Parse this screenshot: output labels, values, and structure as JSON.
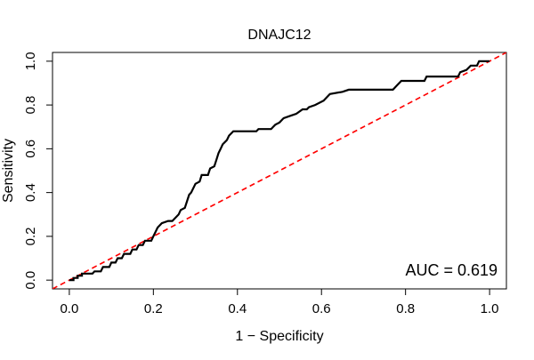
{
  "chart_data": {
    "type": "line",
    "title": "DNAJC12",
    "xlabel": "1 − Specificity",
    "ylabel": "Sensitivity",
    "xlim": [
      -0.04,
      1.04
    ],
    "ylim": [
      -0.04,
      1.04
    ],
    "x_ticks": [
      "0.0",
      "0.2",
      "0.4",
      "0.6",
      "0.8",
      "1.0"
    ],
    "y_ticks": [
      "0.0",
      "0.2",
      "0.4",
      "0.6",
      "0.8",
      "1.0"
    ],
    "grid": false,
    "annotation": "AUC = 0.619",
    "series": [
      {
        "name": "ROC",
        "color": "#000000",
        "style": "solid",
        "points": [
          [
            0.0,
            0.0
          ],
          [
            0.01,
            0.0
          ],
          [
            0.01,
            0.01
          ],
          [
            0.02,
            0.01
          ],
          [
            0.02,
            0.02
          ],
          [
            0.03,
            0.02
          ],
          [
            0.03,
            0.03
          ],
          [
            0.055,
            0.03
          ],
          [
            0.06,
            0.04
          ],
          [
            0.075,
            0.04
          ],
          [
            0.08,
            0.06
          ],
          [
            0.095,
            0.06
          ],
          [
            0.1,
            0.08
          ],
          [
            0.11,
            0.08
          ],
          [
            0.115,
            0.1
          ],
          [
            0.125,
            0.1
          ],
          [
            0.13,
            0.12
          ],
          [
            0.145,
            0.12
          ],
          [
            0.15,
            0.14
          ],
          [
            0.16,
            0.14
          ],
          [
            0.165,
            0.16
          ],
          [
            0.175,
            0.16
          ],
          [
            0.18,
            0.18
          ],
          [
            0.195,
            0.18
          ],
          [
            0.2,
            0.2
          ],
          [
            0.205,
            0.22
          ],
          [
            0.21,
            0.24
          ],
          [
            0.22,
            0.26
          ],
          [
            0.235,
            0.27
          ],
          [
            0.245,
            0.27
          ],
          [
            0.25,
            0.28
          ],
          [
            0.26,
            0.3
          ],
          [
            0.265,
            0.32
          ],
          [
            0.275,
            0.33
          ],
          [
            0.28,
            0.36
          ],
          [
            0.285,
            0.39
          ],
          [
            0.29,
            0.4
          ],
          [
            0.3,
            0.44
          ],
          [
            0.31,
            0.45
          ],
          [
            0.315,
            0.48
          ],
          [
            0.33,
            0.48
          ],
          [
            0.335,
            0.51
          ],
          [
            0.345,
            0.52
          ],
          [
            0.35,
            0.55
          ],
          [
            0.355,
            0.58
          ],
          [
            0.36,
            0.6
          ],
          [
            0.365,
            0.62
          ],
          [
            0.375,
            0.64
          ],
          [
            0.38,
            0.66
          ],
          [
            0.39,
            0.68
          ],
          [
            0.445,
            0.68
          ],
          [
            0.45,
            0.69
          ],
          [
            0.48,
            0.69
          ],
          [
            0.485,
            0.7
          ],
          [
            0.49,
            0.71
          ],
          [
            0.5,
            0.72
          ],
          [
            0.51,
            0.74
          ],
          [
            0.525,
            0.75
          ],
          [
            0.54,
            0.76
          ],
          [
            0.555,
            0.78
          ],
          [
            0.565,
            0.78
          ],
          [
            0.57,
            0.79
          ],
          [
            0.585,
            0.8
          ],
          [
            0.605,
            0.82
          ],
          [
            0.615,
            0.84
          ],
          [
            0.62,
            0.85
          ],
          [
            0.65,
            0.86
          ],
          [
            0.665,
            0.87
          ],
          [
            0.77,
            0.87
          ],
          [
            0.78,
            0.89
          ],
          [
            0.79,
            0.91
          ],
          [
            0.845,
            0.91
          ],
          [
            0.85,
            0.93
          ],
          [
            0.925,
            0.93
          ],
          [
            0.93,
            0.95
          ],
          [
            0.945,
            0.96
          ],
          [
            0.955,
            0.98
          ],
          [
            0.97,
            0.98
          ],
          [
            0.975,
            1.0
          ],
          [
            1.0,
            1.0
          ]
        ]
      },
      {
        "name": "Reference",
        "color": "#ff0000",
        "style": "dashed",
        "points": [
          [
            -0.04,
            -0.04
          ],
          [
            1.04,
            1.04
          ]
        ]
      }
    ]
  }
}
